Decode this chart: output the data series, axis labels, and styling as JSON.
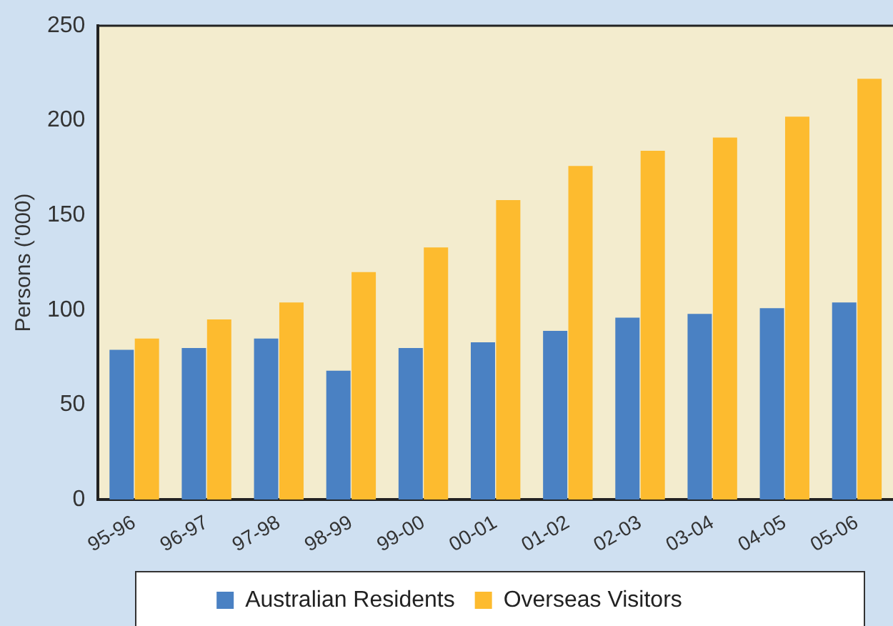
{
  "chart_data": {
    "type": "bar",
    "ylabel": "Persons ('000)",
    "categories": [
      "95-96",
      "96-97",
      "97-98",
      "98-99",
      "99-00",
      "00-01",
      "01-02",
      "02-03",
      "03-04",
      "04-05",
      "05-06"
    ],
    "series": [
      {
        "name": "Australian Residents",
        "color": "#4a81c3",
        "values": [
          79,
          80,
          85,
          68,
          80,
          83,
          89,
          96,
          98,
          101,
          104
        ]
      },
      {
        "name": "Overseas Visitors",
        "color": "#fdbb2f",
        "values": [
          85,
          95,
          104,
          120,
          133,
          158,
          176,
          184,
          191,
          202,
          222
        ]
      }
    ],
    "ylim": [
      0,
      250
    ],
    "yticks": [
      0,
      50,
      100,
      150,
      200,
      250
    ],
    "grid": false,
    "legend": "bottom"
  }
}
